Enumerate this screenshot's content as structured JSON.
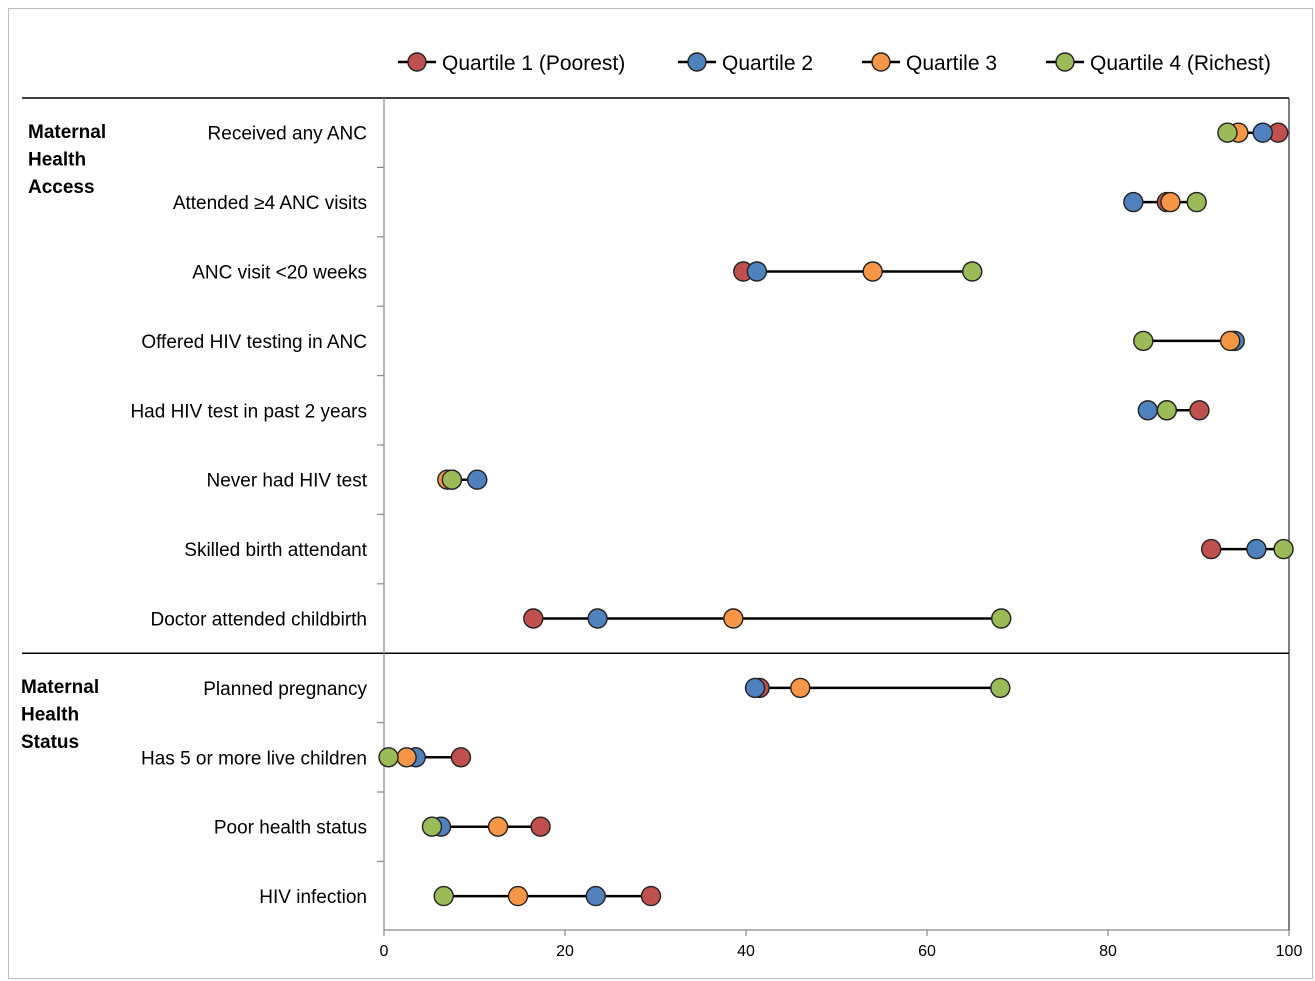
{
  "chart_data": {
    "type": "scatter",
    "title": "",
    "xlabel": "",
    "ylabel": "",
    "xlim": [
      0,
      100
    ],
    "xticks": [
      0,
      20,
      40,
      60,
      80,
      100
    ],
    "grid": false,
    "legend_position": "top",
    "series": [
      {
        "name": "Quartile 1 (Poorest)",
        "color": "#c0504d"
      },
      {
        "name": "Quartile 2",
        "color": "#4f81bd"
      },
      {
        "name": "Quartile 3",
        "color": "#f79646"
      },
      {
        "name": "Quartile 4 (Richest)",
        "color": "#9bbb59"
      }
    ],
    "groups": [
      {
        "name": "Maternal Health Access",
        "lines": [
          "Maternal",
          "Health",
          "Access"
        ],
        "rows": [
          {
            "label": "Received any ANC",
            "values": [
              98.8,
              97.1,
              94.4,
              93.2
            ]
          },
          {
            "label": "Attended ≥4 ANC visits",
            "values": [
              86.5,
              82.8,
              86.9,
              89.8
            ]
          },
          {
            "label": "ANC visit <20 weeks",
            "values": [
              39.7,
              41.2,
              54.0,
              65.0
            ]
          },
          {
            "label": "Offered HIV testing in ANC",
            "values": [
              93.8,
              94.0,
              93.5,
              83.9
            ]
          },
          {
            "label": "Had HIV test in past 2 years",
            "values": [
              90.1,
              84.4,
              86.5,
              86.5
            ]
          },
          {
            "label": "Never had HIV test",
            "values": [
              7.5,
              10.3,
              7.0,
              7.5
            ]
          },
          {
            "label": "Skilled birth attendant",
            "values": [
              91.4,
              96.4,
              null,
              99.4
            ]
          },
          {
            "label": "Doctor attended childbirth",
            "values": [
              16.5,
              23.6,
              38.6,
              68.2
            ]
          }
        ]
      },
      {
        "name": "Maternal Health Status",
        "lines": [
          "Maternal",
          "Health",
          "Status"
        ],
        "rows": [
          {
            "label": "Planned pregnancy",
            "values": [
              41.5,
              41.0,
              46.0,
              68.1
            ]
          },
          {
            "label": "Has 5 or more live children",
            "values": [
              8.5,
              3.5,
              2.5,
              0.5
            ]
          },
          {
            "label": "Poor health status",
            "values": [
              17.3,
              6.3,
              12.6,
              5.3
            ]
          },
          {
            "label": "HIV infection",
            "values": [
              29.5,
              23.4,
              14.8,
              6.6
            ]
          }
        ]
      }
    ]
  }
}
